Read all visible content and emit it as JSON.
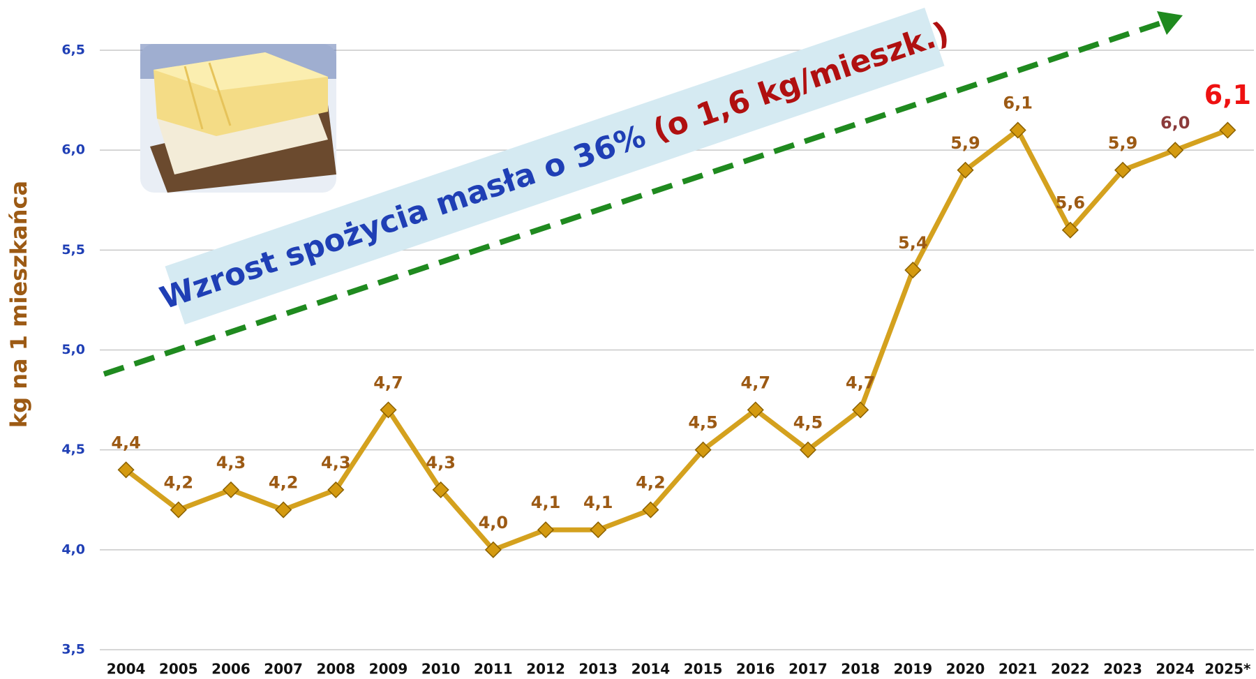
{
  "chart_data": {
    "type": "line",
    "annotation": [
      "Wzrost spożycia masła o 36%",
      "(o 1,6 kg/mieszk.)"
    ],
    "y_label": "kg na 1 mieszkańca",
    "categories": [
      "2004",
      "2005",
      "2006",
      "2007",
      "2008",
      "2009",
      "2010",
      "2011",
      "2012",
      "2013",
      "2014",
      "2015",
      "2016",
      "2017",
      "2018",
      "2019",
      "2020",
      "2021",
      "2022",
      "2023",
      "2024",
      "2025*"
    ],
    "values": [
      4.4,
      4.2,
      4.3,
      4.2,
      4.3,
      4.7,
      4.3,
      4.0,
      4.1,
      4.1,
      4.2,
      4.5,
      4.7,
      4.5,
      4.7,
      5.4,
      5.9,
      6.1,
      5.6,
      5.9,
      6.0,
      6.1
    ],
    "value_labels": [
      "4,4",
      "4,2",
      "4,3",
      "4,2",
      "4,3",
      "4,7",
      "4,3",
      "4,0",
      "4,1",
      "4,1",
      "4,2",
      "4,5",
      "4,7",
      "4,5",
      "4,7",
      "5,4",
      "5,9",
      "6,1",
      "5,6",
      "5,9",
      "6,0",
      "6,1"
    ],
    "color": "#d4a11e",
    "ylim": [
      3.5,
      6.5
    ],
    "yticks": [
      {
        "value": 3.5,
        "label": "3,5"
      },
      {
        "value": 4.0,
        "label": "4,0"
      },
      {
        "value": 4.5,
        "label": "4,5"
      },
      {
        "value": 5.0,
        "label": "5,0"
      },
      {
        "value": 5.5,
        "label": "5,5"
      },
      {
        "value": 6.0,
        "label": "6,0"
      },
      {
        "value": 6.5,
        "label": "6,5"
      }
    ],
    "grid": true
  }
}
